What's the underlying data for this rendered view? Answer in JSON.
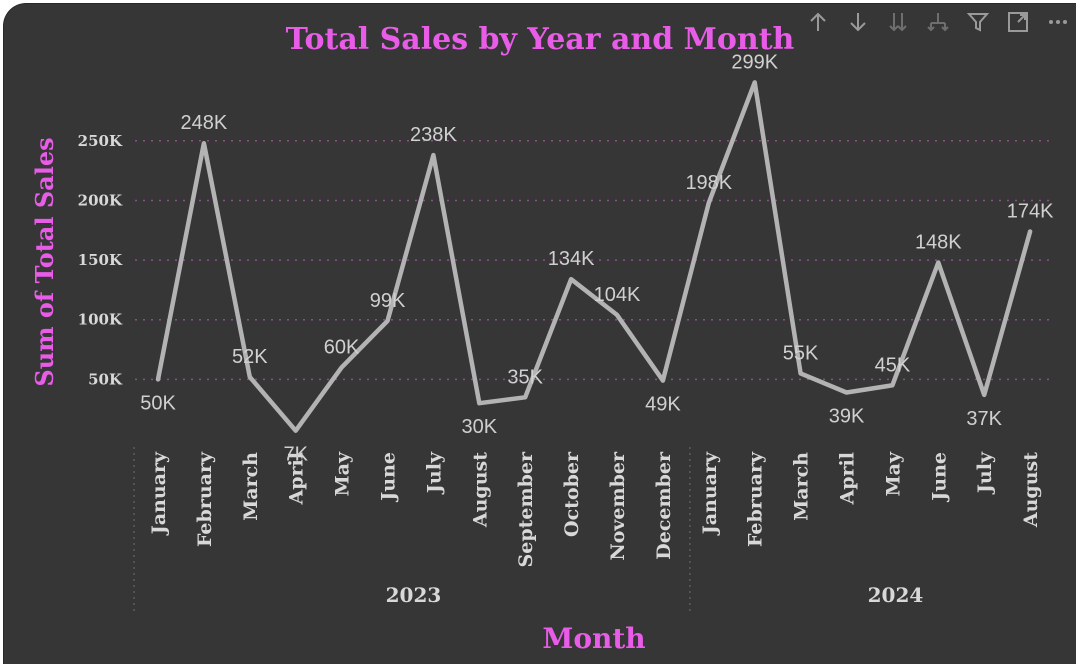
{
  "toolbar": {
    "icons": [
      "arrow-up-icon",
      "arrow-down-icon",
      "double-arrow-down-icon",
      "expand-hierarchy-icon",
      "filter-icon",
      "focus-mode-icon",
      "more-options-icon"
    ]
  },
  "colors": {
    "background": "#363636",
    "title": "#e85ce8",
    "line": "#b3b3b3",
    "grid": "#8a4f8a",
    "text": "#d8d8d8"
  },
  "chart_data": {
    "type": "line",
    "title": "Total Sales by Year and Month",
    "xlabel": "Month",
    "ylabel": "Sum of Total Sales",
    "ylim": [
      0,
      300000
    ],
    "yticks": [
      50000,
      100000,
      150000,
      200000,
      250000
    ],
    "ytick_labels": [
      "50K",
      "100K",
      "150K",
      "200K",
      "250K"
    ],
    "grid": "horizontal dotted",
    "legend": "none",
    "years": [
      {
        "label": "2023",
        "months": 12
      },
      {
        "label": "2024",
        "months": 8
      }
    ],
    "categories": [
      "January",
      "February",
      "March",
      "April",
      "May",
      "June",
      "July",
      "August",
      "September",
      "October",
      "November",
      "December",
      "January",
      "February",
      "March",
      "April",
      "May",
      "June",
      "July",
      "August"
    ],
    "values": [
      50000,
      248000,
      52000,
      7000,
      60000,
      99000,
      238000,
      30000,
      35000,
      134000,
      104000,
      49000,
      198000,
      299000,
      55000,
      39000,
      45000,
      148000,
      37000,
      174000
    ],
    "data_labels": [
      "50K",
      "248K",
      "52K",
      "7K",
      "60K",
      "99K",
      "238K",
      "30K",
      "35K",
      "134K",
      "104K",
      "49K",
      "198K",
      "299K",
      "55K",
      "39K",
      "45K",
      "148K",
      "37K",
      "174K"
    ]
  }
}
